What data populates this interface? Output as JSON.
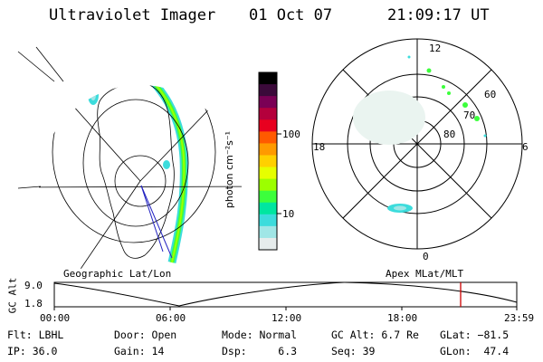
{
  "header": {
    "instrument": "Ultraviolet Imager",
    "date": "01 Oct 07",
    "time": "21:09:17 UT"
  },
  "left_panel": {
    "caption": "Geographic Lat/Lon"
  },
  "right_panel": {
    "caption": "Apex MLat/MLT",
    "mlt_labels": {
      "top": "12",
      "left": "18",
      "right": "6",
      "bottom": "0"
    },
    "mlat_labels": [
      "60",
      "70",
      "80"
    ]
  },
  "colorbar": {
    "unit_label": "photon cm⁻²s⁻¹",
    "ticks": [
      "100",
      "10"
    ],
    "colors": [
      "#000000",
      "#3b0a3a",
      "#7a0055",
      "#b4003c",
      "#e8001f",
      "#ff5a00",
      "#ff9a00",
      "#ffd000",
      "#e6ff00",
      "#9cff00",
      "#3cff3c",
      "#00e6a0",
      "#3cdcdc",
      "#a0e6e6",
      "#e6ecec"
    ]
  },
  "altitude_plot": {
    "ylabel": "GC Alt",
    "yticks": [
      "9.0",
      "1.8"
    ],
    "xticks": [
      "00:00",
      "06:00",
      "12:00",
      "18:00",
      "23:59"
    ],
    "marker_color": "#cc0000",
    "marker_time": "21:09"
  },
  "info": {
    "row1": {
      "filter": "Flt: LBHL",
      "door": "Door: Open",
      "mode": "Mode: Normal",
      "gc_alt": "GC Alt: 6.7 Re",
      "glat": "GLat: −81.5"
    },
    "row2": {
      "ip": "IP: 36.0",
      "gain": "Gain: 14",
      "dsp": "Dsp:     6.3",
      "seq": "Seq: 39",
      "glon": "GLon:  47.4"
    }
  }
}
